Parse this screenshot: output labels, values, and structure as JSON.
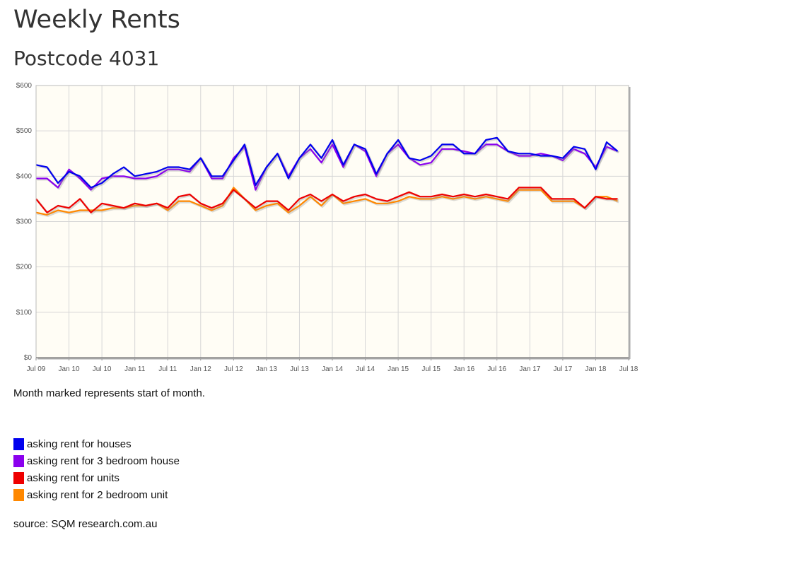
{
  "page": {
    "title": "Weekly Rents",
    "subtitle": "Postcode 4031",
    "note": "Month marked represents start of month.",
    "source": "source: SQM research.com.au"
  },
  "legend": [
    {
      "label": "asking rent for houses",
      "color": "#0000ee"
    },
    {
      "label": "asking rent for 3 bedroom house",
      "color": "#8a00ee"
    },
    {
      "label": "asking rent for units",
      "color": "#ee0000"
    },
    {
      "label": "asking rent for 2 bedroom unit",
      "color": "#ff8800"
    }
  ],
  "chart_data": {
    "type": "line",
    "title": "",
    "xlabel": "",
    "ylabel": "",
    "ylim": [
      0,
      600
    ],
    "y_ticks": [
      0,
      100,
      200,
      300,
      400,
      500,
      600
    ],
    "y_tick_labels": [
      "$0",
      "$100",
      "$200",
      "$300",
      "$400",
      "$500",
      "$600"
    ],
    "x_range": [
      "2009-07",
      "2018-07"
    ],
    "x_ticks": [
      "Jul 09",
      "Jan 10",
      "Jul 10",
      "Jan 11",
      "Jul 11",
      "Jan 12",
      "Jul 12",
      "Jan 13",
      "Jul 13",
      "Jan 14",
      "Jul 14",
      "Jan 15",
      "Jul 15",
      "Jan 16",
      "Jul 16",
      "Jan 17",
      "Jul 17",
      "Jan 18",
      "Jul 18"
    ],
    "grid": true,
    "background": "#fffdf5",
    "x": [
      "2009-07",
      "2009-09",
      "2009-11",
      "2010-01",
      "2010-03",
      "2010-05",
      "2010-07",
      "2010-09",
      "2010-11",
      "2011-01",
      "2011-03",
      "2011-05",
      "2011-07",
      "2011-09",
      "2011-11",
      "2012-01",
      "2012-03",
      "2012-05",
      "2012-07",
      "2012-09",
      "2012-11",
      "2013-01",
      "2013-03",
      "2013-05",
      "2013-07",
      "2013-09",
      "2013-11",
      "2014-01",
      "2014-03",
      "2014-05",
      "2014-07",
      "2014-09",
      "2014-11",
      "2015-01",
      "2015-03",
      "2015-05",
      "2015-07",
      "2015-09",
      "2015-11",
      "2016-01",
      "2016-03",
      "2016-05",
      "2016-07",
      "2016-09",
      "2016-11",
      "2017-01",
      "2017-03",
      "2017-05",
      "2017-07",
      "2017-09",
      "2017-11",
      "2018-01",
      "2018-03",
      "2018-05"
    ],
    "series": [
      {
        "name": "asking rent for houses",
        "color": "#0000ee",
        "values": [
          425,
          420,
          385,
          410,
          400,
          375,
          385,
          405,
          420,
          400,
          405,
          410,
          420,
          420,
          415,
          440,
          400,
          400,
          435,
          470,
          380,
          420,
          450,
          395,
          440,
          470,
          440,
          480,
          425,
          470,
          460,
          405,
          450,
          480,
          440,
          435,
          445,
          470,
          470,
          450,
          450,
          480,
          485,
          455,
          450,
          450,
          445,
          445,
          440,
          465,
          460,
          415,
          475,
          455
        ]
      },
      {
        "name": "asking rent for 3 bedroom house",
        "color": "#8a00ee",
        "values": [
          395,
          395,
          375,
          415,
          395,
          370,
          395,
          400,
          400,
          395,
          395,
          400,
          415,
          415,
          410,
          440,
          395,
          395,
          440,
          465,
          370,
          420,
          450,
          400,
          440,
          460,
          430,
          470,
          420,
          470,
          455,
          400,
          450,
          470,
          440,
          425,
          430,
          460,
          460,
          455,
          450,
          470,
          470,
          455,
          445,
          445,
          450,
          445,
          435,
          460,
          450,
          420,
          465,
          455
        ]
      },
      {
        "name": "asking rent for units",
        "color": "#ee0000",
        "values": [
          350,
          320,
          335,
          330,
          350,
          320,
          340,
          335,
          330,
          340,
          335,
          340,
          330,
          355,
          360,
          340,
          330,
          340,
          370,
          350,
          330,
          345,
          345,
          325,
          350,
          360,
          345,
          360,
          345,
          355,
          360,
          350,
          345,
          355,
          365,
          355,
          355,
          360,
          355,
          360,
          355,
          360,
          355,
          350,
          375,
          375,
          375,
          350,
          350,
          350,
          330,
          355,
          350,
          350
        ]
      },
      {
        "name": "asking rent for 2 bedroom unit",
        "color": "#ff8800",
        "values": [
          320,
          315,
          325,
          320,
          325,
          325,
          325,
          330,
          330,
          335,
          335,
          340,
          325,
          345,
          345,
          335,
          325,
          335,
          375,
          350,
          325,
          335,
          340,
          320,
          335,
          355,
          335,
          360,
          340,
          345,
          350,
          340,
          340,
          345,
          355,
          350,
          350,
          355,
          350,
          355,
          350,
          355,
          350,
          345,
          370,
          370,
          370,
          345,
          345,
          345,
          330,
          355,
          355,
          345
        ]
      }
    ]
  }
}
